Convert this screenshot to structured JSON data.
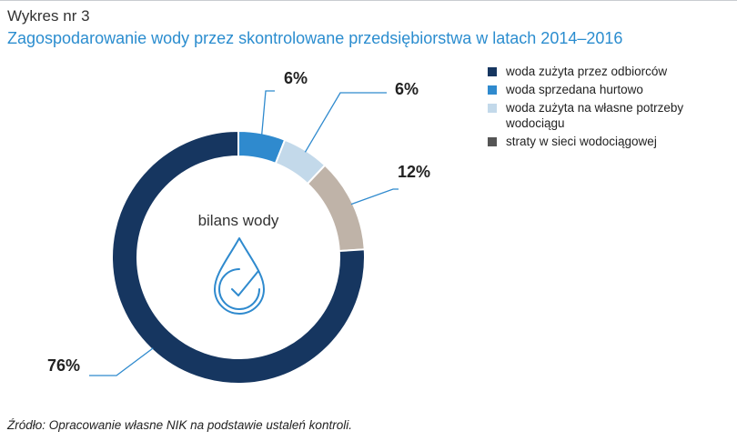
{
  "chart_label": "Wykres nr 3",
  "chart_title": "Zagospodarowanie wody przez skontrolowane przedsiębiorstwa w latach 2014–2016",
  "source_note": "Źródło: Opracowanie własne NIK na podstawie ustaleń kontroli.",
  "chart_data": {
    "type": "pie",
    "donut": true,
    "center_label": "bilans wody",
    "center_icon": "water-drop-check-icon",
    "legend_position": "right",
    "slices": [
      {
        "name": "woda zużyta przez odbiorców",
        "value": 76,
        "label": "76%",
        "color": "#163660"
      },
      {
        "name": "woda sprzedana hurtowo",
        "value": 6,
        "label": "6%",
        "color": "#2f8ace"
      },
      {
        "name": "woda zużyta na własne potrzeby wodociągu",
        "value": 6,
        "label": "6%",
        "color": "#c3d9ea"
      },
      {
        "name": "straty w sieci wodociągowej",
        "value": 12,
        "label": "12%",
        "color": "#bfb3a8"
      }
    ],
    "legend": [
      {
        "label": "woda zużyta przez odbiorców",
        "color": "#163660"
      },
      {
        "label": "woda sprzedana hurtowo",
        "color": "#2f8ace"
      },
      {
        "label": "woda zużyta na własne potrzeby wodociągu",
        "color": "#c3d9ea"
      },
      {
        "label": "straty w sieci wodociągowej",
        "color": "#555555"
      }
    ]
  }
}
